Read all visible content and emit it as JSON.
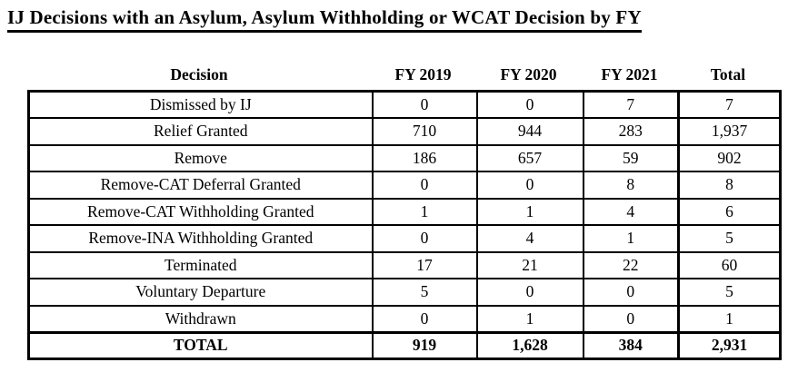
{
  "title": "IJ Decisions with an Asylum, Asylum Withholding or WCAT Decision by FY",
  "table": {
    "columns": [
      "Decision",
      "FY 2019",
      "FY 2020",
      "FY 2021",
      "Total"
    ],
    "rows": [
      {
        "decision": "Dismissed by IJ",
        "fy2019": "0",
        "fy2020": "0",
        "fy2021": "7",
        "total": "7"
      },
      {
        "decision": "Relief Granted",
        "fy2019": "710",
        "fy2020": "944",
        "fy2021": "283",
        "total": "1,937"
      },
      {
        "decision": "Remove",
        "fy2019": "186",
        "fy2020": "657",
        "fy2021": "59",
        "total": "902"
      },
      {
        "decision": "Remove-CAT Deferral Granted",
        "fy2019": "0",
        "fy2020": "0",
        "fy2021": "8",
        "total": "8"
      },
      {
        "decision": "Remove-CAT Withholding Granted",
        "fy2019": "1",
        "fy2020": "1",
        "fy2021": "4",
        "total": "6"
      },
      {
        "decision": "Remove-INA Withholding Granted",
        "fy2019": "0",
        "fy2020": "4",
        "fy2021": "1",
        "total": "5"
      },
      {
        "decision": "Terminated",
        "fy2019": "17",
        "fy2020": "21",
        "fy2021": "22",
        "total": "60"
      },
      {
        "decision": "Voluntary Departure",
        "fy2019": "5",
        "fy2020": "0",
        "fy2021": "0",
        "total": "5"
      },
      {
        "decision": "Withdrawn",
        "fy2019": "0",
        "fy2020": "1",
        "fy2021": "0",
        "total": "1"
      }
    ],
    "total_row": {
      "decision": "TOTAL",
      "fy2019": "919",
      "fy2020": "1,628",
      "fy2021": "384",
      "total": "2,931"
    }
  },
  "colors": {
    "text": "#000000",
    "border": "#000000",
    "background": "#ffffff"
  }
}
